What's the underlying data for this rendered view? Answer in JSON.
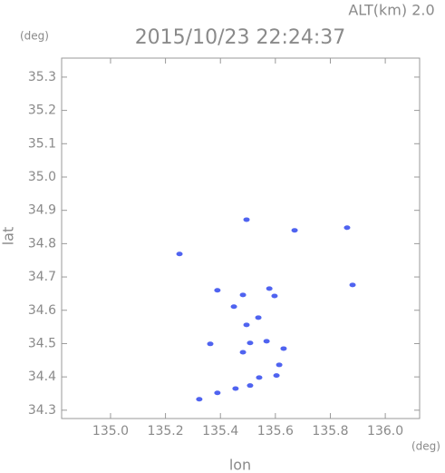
{
  "chart_data": {
    "type": "scatter",
    "title": "2015/10/23 22:24:37",
    "annotation": "ALT(km) 2.0",
    "x_label": "lon",
    "y_label": "lat",
    "x_unit": "(deg)",
    "y_unit": "(deg)",
    "xlim": [
      134.822,
      136.125
    ],
    "ylim": [
      34.275,
      35.357
    ],
    "xticks": [
      {
        "value": 135,
        "label": "135.0"
      },
      135.2,
      135.4,
      135.6,
      135.8,
      {
        "value": 136,
        "label": "136.0"
      }
    ],
    "yticks": [
      34.3,
      34.4,
      34.5,
      34.6,
      34.7,
      34.8,
      34.9,
      {
        "value": 35,
        "label": "35.0"
      },
      35.1,
      35.2,
      35.3
    ],
    "grid": false,
    "series": [
      {
        "color": "#4f63f0",
        "x": [
          135.861,
          135.881,
          135.251,
          135.495,
          135.67,
          135.389,
          135.482,
          135.578,
          135.597,
          135.495,
          135.538,
          135.508,
          135.568,
          135.63,
          135.363,
          135.482,
          135.614,
          135.541,
          135.604,
          135.508,
          135.455,
          135.389,
          135.323,
          135.449
        ],
        "values": [
          34.848,
          34.676,
          34.769,
          34.872,
          34.84,
          34.66,
          34.646,
          34.665,
          34.643,
          34.556,
          34.578,
          34.502,
          34.507,
          34.485,
          34.499,
          34.474,
          34.436,
          34.398,
          34.404,
          34.374,
          34.365,
          34.352,
          34.333,
          34.611
        ]
      }
    ]
  }
}
